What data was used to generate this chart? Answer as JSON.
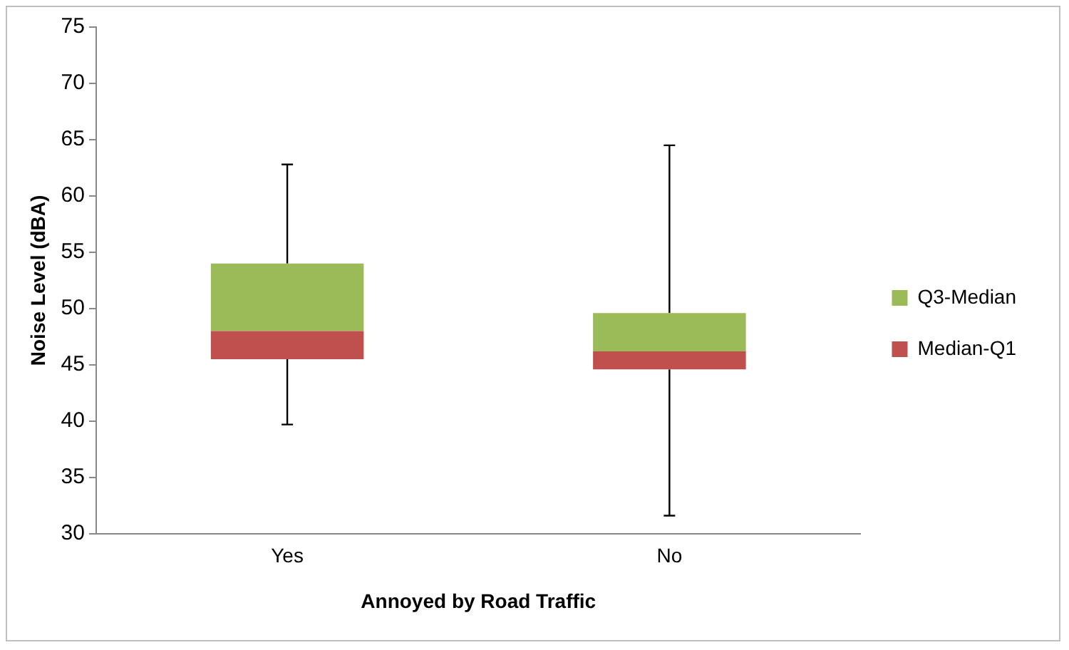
{
  "chart_data": {
    "type": "bar",
    "xlabel": "Annoyed by Road Traffic",
    "ylabel": "Noise Level (dBA)",
    "categories": [
      "Yes",
      "No"
    ],
    "series": [
      {
        "name": "Median-Q1",
        "color": "#c0504d",
        "base": [
          45.5,
          44.6
        ],
        "values": [
          2.5,
          1.6
        ],
        "errors": [
          [
            39.7,
            45.5
          ],
          [
            31.6,
            44.6
          ]
        ]
      },
      {
        "name": "Q3-Median",
        "color": "#9bbb59",
        "base": [
          48,
          46.2
        ],
        "values": [
          6,
          3.4
        ],
        "errors": [
          [
            54,
            62.8
          ],
          [
            49.6,
            64.5
          ]
        ]
      }
    ],
    "ylim": [
      30,
      75
    ],
    "yticks": [
      30,
      35,
      40,
      45,
      50,
      55,
      60,
      65,
      70,
      75
    ],
    "grid": false,
    "legend": "right"
  }
}
